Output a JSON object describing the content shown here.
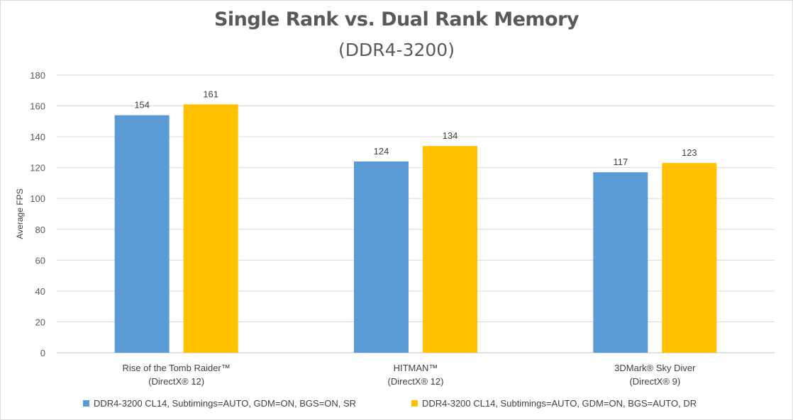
{
  "chart_data": {
    "type": "bar",
    "title": "Single Rank vs. Dual Rank Memory",
    "subtitle": "(DDR4-3200)",
    "ylabel": "Average FPS",
    "xlabel": "",
    "ylim": [
      0,
      180
    ],
    "yticks": [
      0,
      20,
      40,
      60,
      80,
      100,
      120,
      140,
      160,
      180
    ],
    "grid": true,
    "legend_position": "bottom",
    "categories": [
      [
        "Rise of the Tomb Raider™",
        "(DirectX® 12)"
      ],
      [
        "HITMAN™",
        "(DirectX® 12)"
      ],
      [
        "3DMark® Sky Diver",
        "(DirectX® 9)"
      ]
    ],
    "series": [
      {
        "name": "DDR4-3200 CL14, Subtimings=AUTO, GDM=ON, BGS=ON, SR",
        "color": "#5b9bd5",
        "values": [
          154,
          124,
          117
        ]
      },
      {
        "name": "DDR4-3200 CL14, Subtimings=AUTO, GDM=ON, BGS=AUTO, DR",
        "color": "#ffc000",
        "values": [
          161,
          134,
          123
        ]
      }
    ]
  }
}
